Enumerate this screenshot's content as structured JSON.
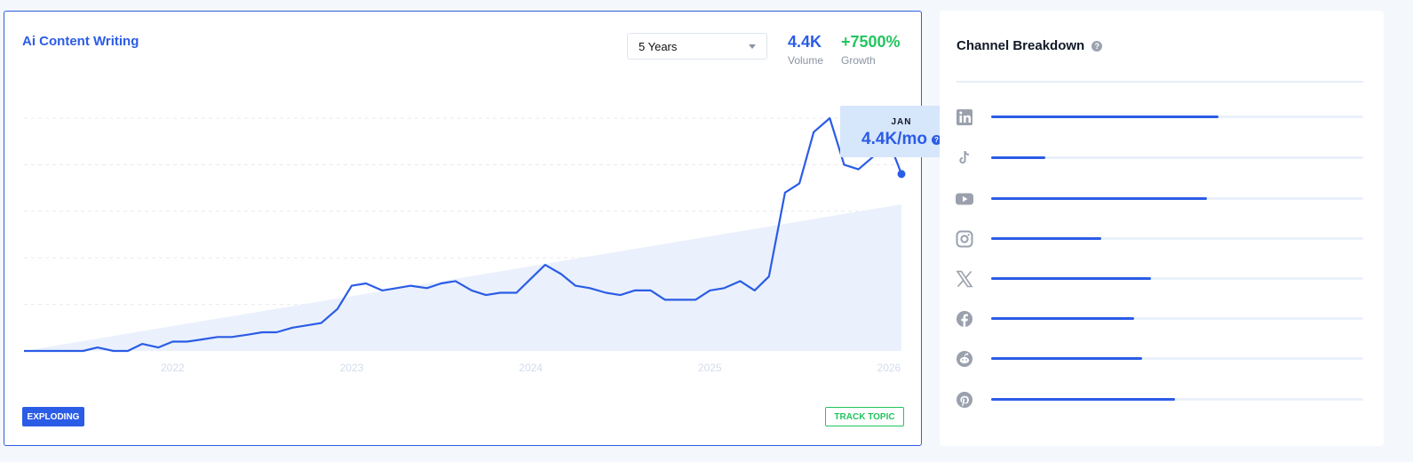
{
  "topic": {
    "title": "Ai Content Writing",
    "range": "5 Years",
    "volume": "4.4K",
    "volume_label": "Volume",
    "growth": "+7500%",
    "growth_label": "Growth",
    "status_badge": "EXPLODING",
    "track_button": "TRACK TOPIC"
  },
  "tooltip": {
    "month": "JAN",
    "value": "4.4K/mo"
  },
  "chart_data": {
    "type": "line",
    "x_ticks": [
      "2022",
      "2023",
      "2024",
      "2025",
      "2026"
    ],
    "x_range": [
      2021.17,
      2026.07
    ],
    "ylim": [
      0,
      100
    ],
    "grid": true,
    "series": [
      {
        "x": [
          2021.17,
          2021.25,
          2021.33,
          2021.42,
          2021.5,
          2021.58,
          2021.67,
          2021.75,
          2021.83,
          2021.92,
          2022.0,
          2022.08,
          2022.17,
          2022.25,
          2022.33,
          2022.42,
          2022.5,
          2022.58,
          2022.67,
          2022.75,
          2022.83,
          2022.92,
          2023.0,
          2023.08,
          2023.17,
          2023.25,
          2023.33,
          2023.42,
          2023.5,
          2023.58,
          2023.67,
          2023.75,
          2023.83,
          2023.92,
          2024.0,
          2024.08,
          2024.17,
          2024.25,
          2024.33,
          2024.42,
          2024.5,
          2024.58,
          2024.67,
          2024.75,
          2024.83,
          2024.92,
          2025.0,
          2025.08,
          2025.17,
          2025.25,
          2025.33,
          2025.42,
          2025.5,
          2025.58,
          2025.67,
          2025.75,
          2025.83,
          2025.92,
          2026.0,
          2026.07
        ],
        "values": [
          0,
          0,
          0,
          0,
          0,
          1.5,
          0,
          0,
          3,
          1.5,
          4,
          4,
          5,
          6,
          6,
          7,
          8,
          8,
          10,
          11,
          12,
          18,
          28,
          29,
          26,
          27,
          28,
          27,
          29,
          30,
          26,
          24,
          25,
          25,
          31,
          37,
          33,
          28,
          27,
          25,
          24,
          26,
          26,
          22,
          22,
          22,
          26,
          27,
          30,
          26,
          32,
          68,
          72,
          94,
          100,
          80,
          78,
          84,
          90,
          76
        ]
      }
    ],
    "trend": {
      "x": [
        2021.17,
        2026.07
      ],
      "values": [
        0,
        63
      ]
    }
  },
  "channels": {
    "title": "Channel Breakdown",
    "items": [
      {
        "name": "linkedin-icon",
        "share": 0.61
      },
      {
        "name": "tiktok-icon",
        "share": 0.145
      },
      {
        "name": "youtube-icon",
        "share": 0.58
      },
      {
        "name": "instagram-icon",
        "share": 0.295
      },
      {
        "name": "x-icon",
        "share": 0.43
      },
      {
        "name": "facebook-icon",
        "share": 0.385
      },
      {
        "name": "reddit-icon",
        "share": 0.405
      },
      {
        "name": "pinterest-icon",
        "share": 0.495
      }
    ]
  },
  "colors": {
    "accent": "#2b5ce6",
    "growth": "#22c55e",
    "trend_fill": "#e6eefc",
    "icon": "#9aa1ad"
  }
}
